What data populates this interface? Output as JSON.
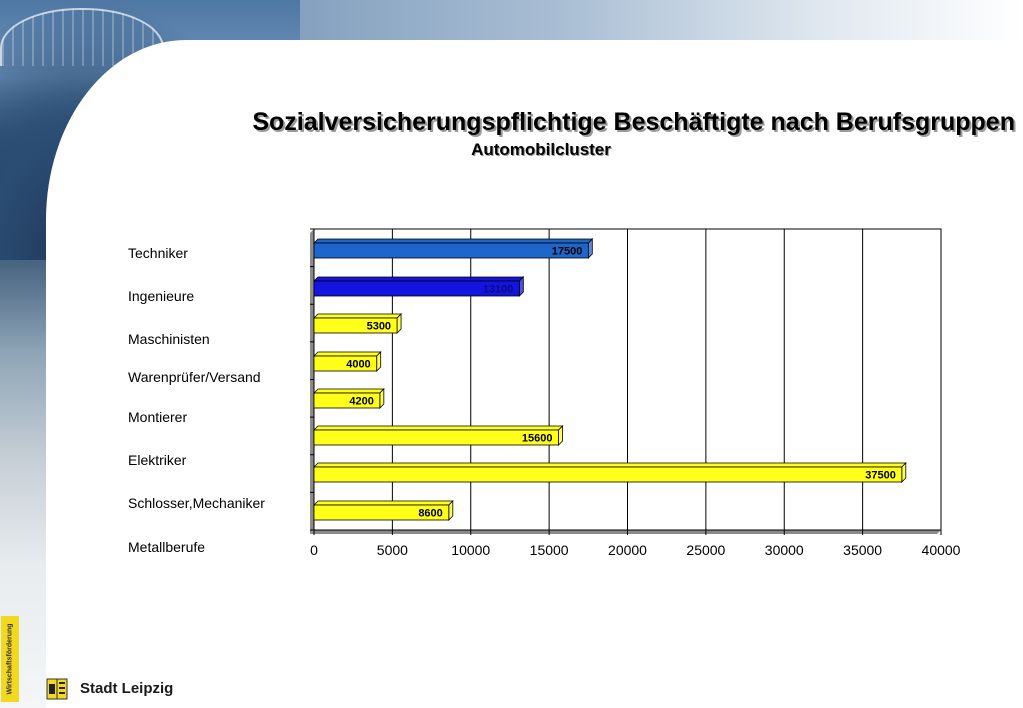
{
  "header": {
    "title": "Sozialversicherungspflichtige Beschäftigte nach Berufsgruppen",
    "subtitle": "Automobilcluster"
  },
  "footer": {
    "tab_text": "Wirtschaftsförderung",
    "city": "Stadt Leipzig"
  },
  "colors": {
    "bar_yellow": "#ffff1a",
    "bar_blue_light": "#1f66cc",
    "bar_blue_dark": "#1414e0",
    "grid": "#000000"
  },
  "chart_data": {
    "type": "bar",
    "orientation": "horizontal",
    "categories": [
      "Techniker",
      "Ingenieure",
      "Maschinisten",
      "Warenprüfer/Versand",
      "Montierer",
      "Elektriker",
      "Schlosser,Mechaniker",
      "Metallberufe"
    ],
    "bars": [
      {
        "value": 17500,
        "label": "17500",
        "color": "#1f66cc"
      },
      {
        "value": 13100,
        "label": "13100",
        "color": "#1414e0"
      },
      {
        "value": 5300,
        "label": "5300",
        "color": "#ffff1a"
      },
      {
        "value": 4000,
        "label": "4000",
        "color": "#ffff1a"
      },
      {
        "value": 4200,
        "label": "4200",
        "color": "#ffff1a"
      },
      {
        "value": 15600,
        "label": "15600",
        "color": "#ffff1a"
      },
      {
        "value": 37500,
        "label": "37500",
        "color": "#ffff1a"
      },
      {
        "value": 8600,
        "label": "8600",
        "color": "#ffff1a"
      }
    ],
    "xticks": [
      "0",
      "5000",
      "10000",
      "15000",
      "20000",
      "25000",
      "30000",
      "35000",
      "40000"
    ],
    "xlim": [
      0,
      40000
    ],
    "grid": "vertical",
    "legend": "none"
  }
}
